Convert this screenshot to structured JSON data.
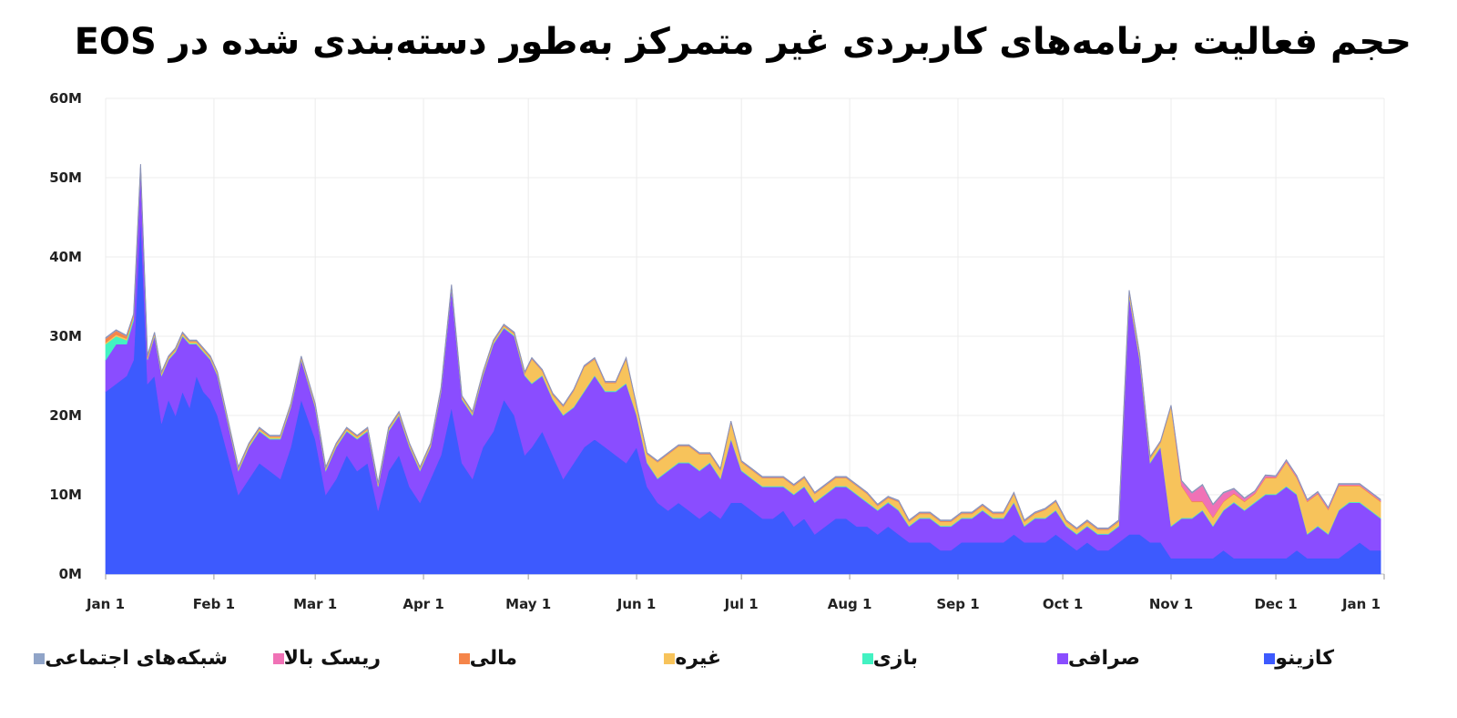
{
  "title": "حجم فعالیت برنامه‌های کاربردی غیر متمرکز به‌طور دسته‌بندی شده در EOS",
  "chart_data": {
    "type": "area",
    "stacked": true,
    "x_unit": "2020-01-01 .. 2021-01-01 (daily, approx. values every 3-4 days)",
    "x": [
      "2020-01-01",
      "2020-01-04",
      "2020-01-07",
      "2020-01-09",
      "2020-01-11",
      "2020-01-13",
      "2020-01-15",
      "2020-01-17",
      "2020-01-19",
      "2020-01-21",
      "2020-01-23",
      "2020-01-25",
      "2020-01-27",
      "2020-01-29",
      "2020-01-31",
      "2020-02-02",
      "2020-02-05",
      "2020-02-08",
      "2020-02-11",
      "2020-02-14",
      "2020-02-17",
      "2020-02-20",
      "2020-02-23",
      "2020-02-26",
      "2020-03-01",
      "2020-03-04",
      "2020-03-07",
      "2020-03-10",
      "2020-03-13",
      "2020-03-16",
      "2020-03-19",
      "2020-03-22",
      "2020-03-25",
      "2020-03-28",
      "2020-03-31",
      "2020-04-03",
      "2020-04-06",
      "2020-04-09",
      "2020-04-12",
      "2020-04-15",
      "2020-04-18",
      "2020-04-21",
      "2020-04-24",
      "2020-04-27",
      "2020-04-30",
      "2020-05-02",
      "2020-05-05",
      "2020-05-08",
      "2020-05-11",
      "2020-05-14",
      "2020-05-17",
      "2020-05-20",
      "2020-05-23",
      "2020-05-26",
      "2020-05-29",
      "2020-06-01",
      "2020-06-04",
      "2020-06-07",
      "2020-06-10",
      "2020-06-13",
      "2020-06-16",
      "2020-06-19",
      "2020-06-22",
      "2020-06-25",
      "2020-06-28",
      "2020-07-01",
      "2020-07-04",
      "2020-07-07",
      "2020-07-10",
      "2020-07-13",
      "2020-07-16",
      "2020-07-19",
      "2020-07-22",
      "2020-07-25",
      "2020-07-28",
      "2020-07-31",
      "2020-08-03",
      "2020-08-06",
      "2020-08-09",
      "2020-08-12",
      "2020-08-15",
      "2020-08-18",
      "2020-08-21",
      "2020-08-24",
      "2020-08-27",
      "2020-08-30",
      "2020-09-02",
      "2020-09-05",
      "2020-09-08",
      "2020-09-11",
      "2020-09-14",
      "2020-09-17",
      "2020-09-20",
      "2020-09-23",
      "2020-09-26",
      "2020-09-29",
      "2020-10-02",
      "2020-10-05",
      "2020-10-08",
      "2020-10-11",
      "2020-10-14",
      "2020-10-17",
      "2020-10-20",
      "2020-10-23",
      "2020-10-26",
      "2020-10-29",
      "2020-11-01",
      "2020-11-04",
      "2020-11-07",
      "2020-11-10",
      "2020-11-13",
      "2020-11-16",
      "2020-11-19",
      "2020-11-22",
      "2020-11-25",
      "2020-11-28",
      "2020-12-01",
      "2020-12-04",
      "2020-12-07",
      "2020-12-10",
      "2020-12-13",
      "2020-12-16",
      "2020-12-19",
      "2020-12-22",
      "2020-12-25",
      "2020-12-28",
      "2020-12-31"
    ],
    "series": [
      {
        "name": "کازینو",
        "color": "#3d5afe",
        "values": [
          23,
          24,
          25,
          27,
          45,
          24,
          25,
          19,
          22,
          20,
          23,
          21,
          25,
          23,
          22,
          20,
          15,
          10,
          12,
          14,
          13,
          12,
          16,
          22,
          17,
          10,
          12,
          15,
          13,
          14,
          8,
          13,
          15,
          11,
          9,
          12,
          15,
          21,
          14,
          12,
          16,
          18,
          22,
          20,
          15,
          16,
          18,
          15,
          12,
          14,
          16,
          17,
          16,
          15,
          14,
          16,
          11,
          9,
          8,
          9,
          8,
          7,
          8,
          7,
          9,
          9,
          8,
          7,
          7,
          8,
          6,
          7,
          5,
          6,
          7,
          7,
          6,
          6,
          5,
          6,
          5,
          4,
          4,
          4,
          3,
          3,
          4,
          4,
          4,
          4,
          4,
          5,
          4,
          4,
          4,
          5,
          4,
          3,
          4,
          3,
          3,
          4,
          5,
          5,
          4,
          4,
          2,
          2,
          2,
          2,
          2,
          3,
          2,
          2,
          2,
          2,
          2,
          2,
          3,
          2,
          2,
          2,
          2,
          3,
          4,
          3,
          3
        ]
      },
      {
        "name": "صرافی",
        "color": "#8a4dff",
        "values": [
          4,
          5,
          4,
          5,
          6,
          3,
          5,
          6,
          5,
          8,
          7,
          8,
          4,
          5,
          5,
          5,
          4,
          3,
          4,
          4,
          4,
          5,
          5,
          5,
          4,
          3,
          4,
          3,
          4,
          4,
          3,
          5,
          5,
          5,
          4,
          4,
          8,
          15,
          8,
          8,
          9,
          11,
          9,
          10,
          10,
          8,
          7,
          7,
          8,
          7,
          7,
          8,
          7,
          8,
          10,
          4,
          3,
          3,
          5,
          5,
          6,
          6,
          6,
          5,
          8,
          4,
          4,
          4,
          4,
          3,
          4,
          4,
          4,
          4,
          4,
          4,
          4,
          3,
          3,
          3,
          3,
          2,
          3,
          3,
          3,
          3,
          3,
          3,
          4,
          3,
          3,
          4,
          2,
          3,
          3,
          3,
          2,
          2,
          2,
          2,
          2,
          2,
          30,
          22,
          10,
          12,
          4,
          5,
          5,
          6,
          4,
          5,
          7,
          6,
          7,
          8,
          8,
          9,
          7,
          3,
          4,
          3,
          6,
          6,
          5,
          5,
          4
        ]
      },
      {
        "name": "بازی",
        "color": "#43f2c2",
        "values": [
          2,
          1,
          0.5,
          0.3,
          0.2,
          0.1,
          0.1,
          0.1,
          0.1,
          0.1,
          0.1,
          0.1,
          0.1,
          0.1,
          0.1,
          0.1,
          0.1,
          0.1,
          0.1,
          0.1,
          0.1,
          0.1,
          0.1,
          0.1,
          0.1,
          0.1,
          0.1,
          0.1,
          0.1,
          0.1,
          0.1,
          0.1,
          0.1,
          0.1,
          0.1,
          0.1,
          0.1,
          0.1,
          0.1,
          0.1,
          0.1,
          0.1,
          0.1,
          0.1,
          0.1,
          0.1,
          0.1,
          0.1,
          0.1,
          0.1,
          0.1,
          0.1,
          0.1,
          0.1,
          0.1,
          0.1,
          0.1,
          0.1,
          0.1,
          0.1,
          0.1,
          0.1,
          0.1,
          0.1,
          0.1,
          0.1,
          0.1,
          0.1,
          0.1,
          0.1,
          0.1,
          0.1,
          0.1,
          0.1,
          0.1,
          0.1,
          0.1,
          0.1,
          0.1,
          0.1,
          0.1,
          0.1,
          0.1,
          0.1,
          0.1,
          0.1,
          0.1,
          0.1,
          0.1,
          0.1,
          0.1,
          0.1,
          0.1,
          0.1,
          0.1,
          0.1,
          0.1,
          0.1,
          0.1,
          0.1,
          0.1,
          0.1,
          0.1,
          0.1,
          0.1,
          0.1,
          0.1,
          0.1,
          0.1,
          0.1,
          0.1,
          0.1,
          0.1,
          0.1,
          0.1,
          0.1,
          0.1,
          0.1,
          0.1,
          0.1,
          0.1,
          0.1,
          0.1,
          0.1,
          0.1,
          0.1,
          0.1
        ]
      },
      {
        "name": "غیره",
        "color": "#f7c35b",
        "values": [
          0.2,
          0.2,
          0.2,
          0.2,
          0.2,
          0.2,
          0.2,
          0.2,
          0.2,
          0.2,
          0.2,
          0.2,
          0.2,
          0.2,
          0.2,
          0.2,
          0.2,
          0.2,
          0.2,
          0.2,
          0.2,
          0.2,
          0.2,
          0.2,
          0.2,
          0.2,
          0.2,
          0.2,
          0.2,
          0.2,
          0.2,
          0.2,
          0.2,
          0.2,
          0.2,
          0.2,
          0.2,
          0.2,
          0.2,
          0.2,
          0.2,
          0.2,
          0.2,
          0.2,
          0.2,
          3,
          0.5,
          0.5,
          1,
          2,
          3,
          2,
          1,
          1,
          3,
          1,
          1,
          2,
          2,
          2,
          2,
          2,
          1,
          1,
          2,
          1,
          1,
          1,
          1,
          1,
          1,
          1,
          1,
          1,
          1,
          1,
          1,
          1,
          0.5,
          0.5,
          1,
          0.5,
          0.5,
          0.5,
          0.5,
          0.5,
          0.5,
          0.5,
          0.5,
          0.5,
          0.5,
          1,
          0.5,
          0.5,
          1,
          1,
          0.5,
          0.5,
          0.5,
          0.5,
          0.5,
          0.5,
          0.5,
          0.5,
          0.5,
          0.5,
          15,
          4,
          2,
          1,
          1,
          1,
          1,
          1,
          1,
          2,
          2,
          3,
          2,
          4,
          4,
          3,
          3,
          2,
          2,
          2,
          2
        ]
      },
      {
        "name": "مالی",
        "color": "#f5854a",
        "values": [
          0.5,
          0.5,
          0.3,
          0.2,
          0.2,
          0.2,
          0.1,
          0.1,
          0.1,
          0.1,
          0.1,
          0.1,
          0.1,
          0.1,
          0.1,
          0.1,
          0.1,
          0.1,
          0.1,
          0.1,
          0.1,
          0.1,
          0.1,
          0.1,
          0.1,
          0.1,
          0.1,
          0.1,
          0.1,
          0.1,
          0.1,
          0.1,
          0.1,
          0.1,
          0.1,
          0.1,
          0.1,
          0.1,
          0.1,
          0.1,
          0.1,
          0.1,
          0.1,
          0.1,
          0.1,
          0.1,
          0.1,
          0.1,
          0.1,
          0.1,
          0.1,
          0.1,
          0.1,
          0.1,
          0.1,
          0.1,
          0.1,
          0.1,
          0.1,
          0.1,
          0.1,
          0.1,
          0.1,
          0.1,
          0.1,
          0.1,
          0.1,
          0.1,
          0.1,
          0.1,
          0.1,
          0.1,
          0.1,
          0.1,
          0.1,
          0.1,
          0.1,
          0.1,
          0.1,
          0.1,
          0.1,
          0.1,
          0.1,
          0.1,
          0.1,
          0.1,
          0.1,
          0.1,
          0.1,
          0.1,
          0.1,
          0.1,
          0.1,
          0.1,
          0.1,
          0.1,
          0.1,
          0.1,
          0.1,
          0.1,
          0.1,
          0.1,
          0.1,
          0.1,
          0.1,
          0.1,
          0.1,
          0.1,
          0.1,
          0.1,
          0.1,
          0.1,
          0.1,
          0.1,
          0.1,
          0.1,
          0.1,
          0.1,
          0.1,
          0.1,
          0.1,
          0.1,
          0.1,
          0.1,
          0.1,
          0.1,
          0.1
        ]
      },
      {
        "name": "ریسک بالا",
        "color": "#f072b6",
        "values": [
          0,
          0,
          0,
          0,
          0,
          0,
          0,
          0,
          0,
          0,
          0,
          0,
          0,
          0,
          0,
          0,
          0,
          0,
          0,
          0,
          0,
          0,
          0,
          0,
          0,
          0,
          0,
          0,
          0,
          0,
          0,
          0,
          0,
          0,
          0,
          0,
          0,
          0,
          0,
          0,
          0,
          0,
          0,
          0,
          0,
          0,
          0,
          0,
          0,
          0,
          0,
          0,
          0,
          0,
          0,
          0,
          0,
          0,
          0,
          0,
          0,
          0,
          0,
          0,
          0,
          0,
          0,
          0,
          0,
          0,
          0,
          0,
          0,
          0,
          0,
          0,
          0,
          0,
          0,
          0,
          0,
          0,
          0,
          0,
          0,
          0,
          0,
          0,
          0,
          0,
          0,
          0,
          0,
          0,
          0,
          0,
          0,
          0,
          0,
          0,
          0,
          0,
          0,
          0,
          0,
          0,
          0,
          0.5,
          1,
          2,
          1.5,
          1,
          0.5,
          0.3,
          0.2,
          0.2,
          0.1,
          0.1,
          0.1,
          0.1,
          0.1,
          0.1,
          0.1,
          0.1,
          0.1,
          0.1,
          0.1
        ]
      },
      {
        "name": "شبکه‌های اجتماعی",
        "color": "#90a4c8",
        "values": [
          0.1,
          0.1,
          0.1,
          0.1,
          0.1,
          0.1,
          0.1,
          0.1,
          0.1,
          0.1,
          0.1,
          0.1,
          0.1,
          0.1,
          0.1,
          0.1,
          0.1,
          0.1,
          0.1,
          0.1,
          0.1,
          0.1,
          0.1,
          0.1,
          0.1,
          0.1,
          0.1,
          0.1,
          0.1,
          0.1,
          0.1,
          0.1,
          0.1,
          0.1,
          0.1,
          0.1,
          0.1,
          0.1,
          0.1,
          0.1,
          0.1,
          0.1,
          0.1,
          0.1,
          0.1,
          0.1,
          0.1,
          0.1,
          0.1,
          0.1,
          0.1,
          0.1,
          0.1,
          0.1,
          0.1,
          0.1,
          0.1,
          0.1,
          0.1,
          0.1,
          0.1,
          0.1,
          0.1,
          0.1,
          0.1,
          0.1,
          0.1,
          0.1,
          0.1,
          0.1,
          0.1,
          0.1,
          0.1,
          0.1,
          0.1,
          0.1,
          0.1,
          0.1,
          0.1,
          0.1,
          0.1,
          0.1,
          0.1,
          0.1,
          0.1,
          0.1,
          0.1,
          0.1,
          0.1,
          0.1,
          0.1,
          0.1,
          0.1,
          0.1,
          0.1,
          0.1,
          0.1,
          0.1,
          0.1,
          0.1,
          0.1,
          0.1,
          0.1,
          0.1,
          0.1,
          0.1,
          0.1,
          0.1,
          0.1,
          0.1,
          0.1,
          0.1,
          0.1,
          0.1,
          0.1,
          0.1,
          0.1,
          0.1,
          0.1,
          0.1,
          0.1,
          0.1,
          0.1,
          0.1,
          0.1,
          0.1,
          0.1
        ]
      }
    ],
    "y_ticks": [
      "0M",
      "10M",
      "20M",
      "30M",
      "40M",
      "50M",
      "60M"
    ],
    "ylim": [
      0,
      60
    ],
    "x_ticks": [
      "Jan 1",
      "Feb 1",
      "Mar 1",
      "Apr 1",
      "May 1",
      "Jun 1",
      "Jul 1",
      "Aug 1",
      "Sep 1",
      "Oct 1",
      "Nov 1",
      "Dec 1",
      "Jan 1"
    ],
    "grid": true,
    "legend_position": "bottom"
  }
}
